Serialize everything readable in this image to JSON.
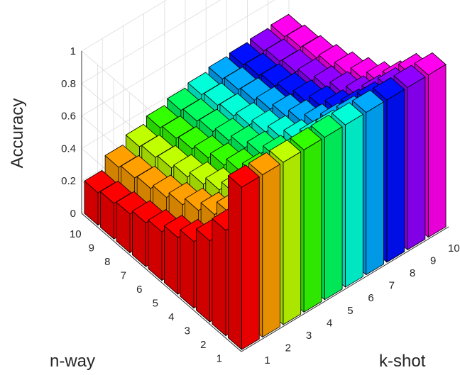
{
  "chart_data": {
    "type": "bar3d",
    "title": "",
    "xlabel": "k-shot",
    "ylabel": "n-way",
    "zlabel": "Accuracy",
    "x": [
      1,
      2,
      3,
      4,
      5,
      6,
      7,
      8,
      9,
      10
    ],
    "y": [
      1,
      2,
      3,
      4,
      5,
      6,
      7,
      8,
      9,
      10
    ],
    "x_ticks": [
      "1",
      "2",
      "3",
      "4",
      "5",
      "6",
      "7",
      "8",
      "9",
      "10"
    ],
    "y_ticks": [
      "1",
      "2",
      "3",
      "4",
      "5",
      "6",
      "7",
      "8",
      "9",
      "10"
    ],
    "z_ticks": [
      "0",
      "0.2",
      "0.4",
      "0.6",
      "0.8",
      "1"
    ],
    "zlim": [
      0,
      1
    ],
    "grid": true,
    "colors": [
      "#ff0000",
      "#ff9f00",
      "#bfff00",
      "#33ff00",
      "#00ff5f",
      "#00ffd9",
      "#00aaff",
      "#0010ff",
      "#9000ff",
      "#ff00ee",
      "#ff0000"
    ],
    "values": [
      [
        1.0,
        1.0,
        1.0,
        1.0,
        1.0,
        1.0,
        1.0,
        1.0,
        1.0,
        1.0
      ],
      [
        0.65,
        0.73,
        0.78,
        0.82,
        0.85,
        0.87,
        0.88,
        0.89,
        0.9,
        0.91
      ],
      [
        0.5,
        0.59,
        0.64,
        0.68,
        0.71,
        0.73,
        0.75,
        0.76,
        0.77,
        0.78
      ],
      [
        0.41,
        0.5,
        0.55,
        0.59,
        0.62,
        0.64,
        0.66,
        0.67,
        0.68,
        0.69
      ],
      [
        0.35,
        0.44,
        0.49,
        0.53,
        0.56,
        0.58,
        0.6,
        0.61,
        0.62,
        0.63
      ],
      [
        0.3,
        0.39,
        0.44,
        0.48,
        0.51,
        0.53,
        0.55,
        0.56,
        0.57,
        0.58
      ],
      [
        0.27,
        0.35,
        0.4,
        0.44,
        0.47,
        0.49,
        0.51,
        0.52,
        0.53,
        0.54
      ],
      [
        0.24,
        0.32,
        0.37,
        0.41,
        0.44,
        0.46,
        0.48,
        0.49,
        0.5,
        0.51
      ],
      [
        0.22,
        0.3,
        0.35,
        0.39,
        0.42,
        0.44,
        0.46,
        0.47,
        0.48,
        0.49
      ],
      [
        0.2,
        0.28,
        0.33,
        0.37,
        0.4,
        0.42,
        0.44,
        0.45,
        0.46,
        0.47
      ]
    ]
  }
}
